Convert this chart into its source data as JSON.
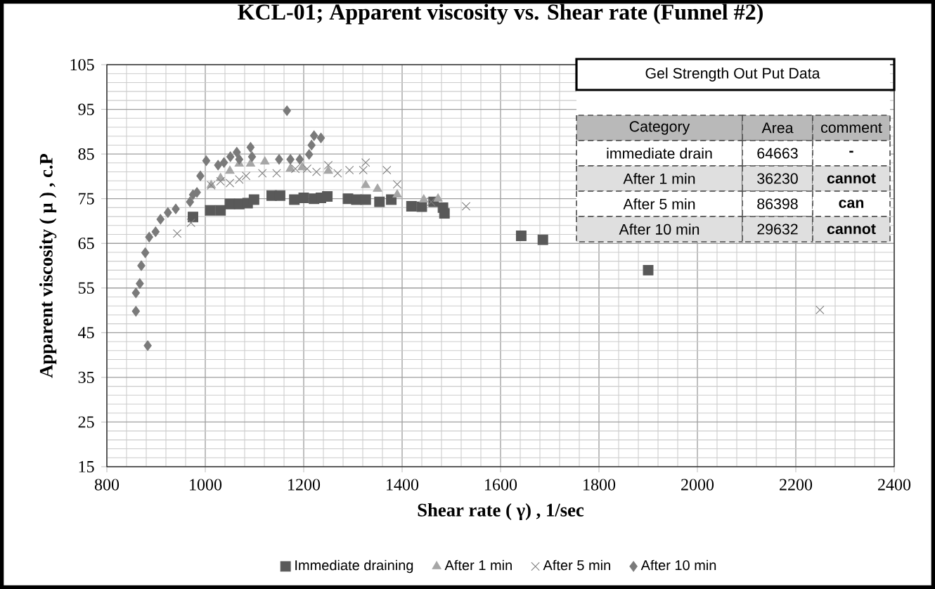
{
  "chart_data": {
    "type": "scatter",
    "title": "KCL-01; Apparent viscosity vs. Shear rate (Funnel #2)",
    "xlabel": "Shear rate ( γ) , 1/sec",
    "ylabel": "Apparent  viscosity ( μ ) , c.P",
    "xlim": [
      800,
      2400
    ],
    "xticks": [
      800,
      1000,
      1200,
      1400,
      1600,
      1800,
      2000,
      2200,
      2400
    ],
    "ylim": [
      15,
      105
    ],
    "yticks": [
      15,
      25,
      35,
      45,
      55,
      65,
      75,
      85,
      95,
      105
    ],
    "grid": true,
    "legend": "bottom",
    "series": [
      {
        "name": "Immediate draining",
        "color": "#595959",
        "marker": "square",
        "x": [
          975,
          1010,
          1031,
          1050,
          1069,
          1086,
          1099,
          1135,
          1152,
          1181,
          1200,
          1221,
          1235,
          1248,
          1290,
          1307,
          1326,
          1354,
          1373,
          1378,
          1419,
          1440,
          1464,
          1483,
          1486,
          1642,
          1686,
          1900
        ],
        "values": [
          70.9,
          72.4,
          72.4,
          73.8,
          73.8,
          74,
          74.8,
          75.7,
          75.7,
          74.8,
          75.2,
          75,
          75.2,
          75.5,
          75,
          74.8,
          74.8,
          74.3,
          null,
          74.8,
          73.3,
          73.2,
          74.3,
          73,
          71.7,
          66.7,
          65.8,
          59
        ]
      },
      {
        "name": "After 1 min",
        "color": "#a6a6a6",
        "marker": "triangle",
        "x": [
          1012,
          1031,
          1050,
          1069,
          1092,
          1121,
          1173,
          1197,
          1250,
          1326,
          1350,
          1390,
          1444,
          1473
        ],
        "values": [
          78,
          79.6,
          81.2,
          82.8,
          82.8,
          83.3,
          81.7,
          82,
          81.2,
          78,
          77.2,
          75.9,
          74.8,
          75
        ]
      },
      {
        "name": "After 5 min",
        "color": "#7f7f7f",
        "marker": "cross",
        "x": [
          943,
          971,
          1012,
          1031,
          1050,
          1069,
          1083,
          1116,
          1145,
          1183,
          1207,
          1226,
          1250,
          1269,
          1293,
          1321,
          1326,
          1369,
          1390,
          1459,
          1530,
          2249
        ],
        "values": [
          67.2,
          69.6,
          78,
          78.9,
          78.5,
          79.3,
          80.1,
          80.7,
          80.7,
          81.7,
          81.7,
          81,
          82.5,
          80.7,
          81.4,
          81.4,
          83.1,
          81.4,
          78.2,
          74.3,
          73.3,
          50.1
        ]
      },
      {
        "name": "After 10 min",
        "color": "#7a7a7a",
        "marker": "diamond",
        "x": [
          859,
          859,
          867,
          870,
          878,
          883,
          886,
          899,
          909,
          924,
          940,
          969,
          975,
          983,
          990,
          1002,
          1026,
          1038,
          1051,
          1064,
          1069,
          1092,
          1095,
          1150,
          1166,
          1173,
          1192,
          1211,
          1216,
          1221,
          1235
        ],
        "values": [
          49.8,
          53.9,
          56,
          60,
          62.9,
          42.1,
          66.4,
          67.6,
          70.4,
          71.9,
          72.7,
          74.3,
          75.9,
          76.4,
          80.1,
          83.5,
          82.5,
          83.1,
          84.4,
          85.4,
          83.8,
          86.5,
          84.4,
          83.8,
          94.7,
          83.8,
          83.8,
          84.9,
          87,
          89.1,
          88.6
        ]
      }
    ],
    "annotations": [
      "Gel Strength Out Put Data",
      "Category",
      "Area",
      "comment",
      "immediate drain",
      "64663",
      "-",
      "After 1 min",
      "36230",
      "cannot",
      "After 5 min",
      "86398",
      "can",
      "After 10 min",
      "29632",
      "cannot"
    ]
  }
}
